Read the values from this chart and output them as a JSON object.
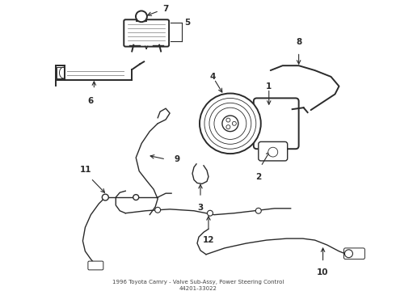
{
  "background_color": "#ffffff",
  "line_color": "#2a2a2a",
  "label_color": "#000000",
  "fig_width": 4.9,
  "fig_height": 3.6,
  "dpi": 100,
  "title_line1": "1996 Toyota Camry - Valve Sub-Assy, Power Steering Control",
  "title_line2": "44201-33022"
}
